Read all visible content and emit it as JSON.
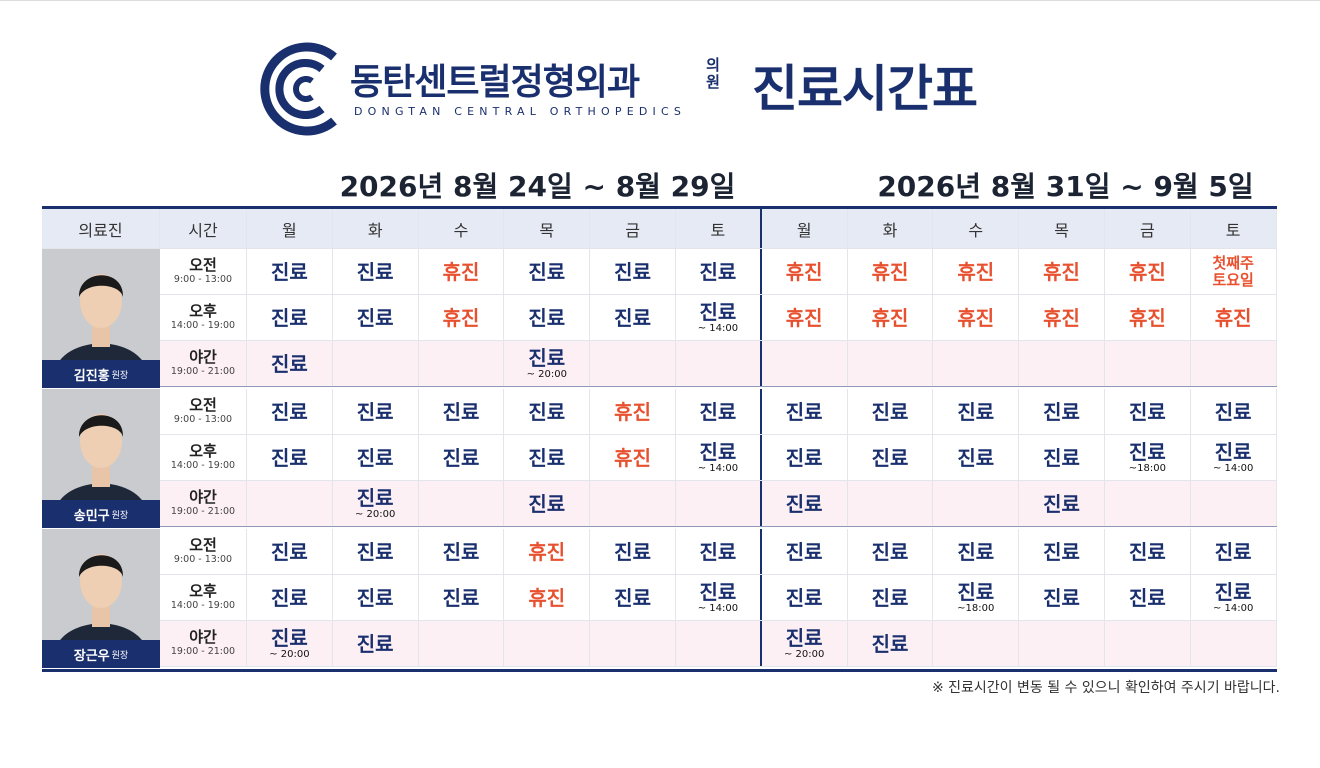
{
  "header": {
    "logo_name": "동탄센트럴정형외과",
    "logo_suffix": [
      "의",
      "원"
    ],
    "logo_english": "DONGTAN CENTRAL ORTHOPEDICS",
    "title": "진료시간표"
  },
  "weeks": [
    "2026년 8월 24일 ~ 8월 29일",
    "2026년 8월 31일 ~ 9월 5일"
  ],
  "columns": {
    "doctor": "의료진",
    "time": "시간",
    "days": [
      "월",
      "화",
      "수",
      "목",
      "금",
      "토",
      "월",
      "화",
      "수",
      "목",
      "금",
      "토"
    ]
  },
  "doctors": [
    {
      "name": "김진홍",
      "title": "원장",
      "slots": [
        {
          "label": "오전",
          "hours": "9:00 - 13:00",
          "cells": [
            {
              "text": "진료"
            },
            {
              "text": "진료"
            },
            {
              "text": "휴진",
              "color": "#e8512f"
            },
            {
              "text": "진료"
            },
            {
              "text": "진료"
            },
            {
              "text": "진료"
            },
            {
              "text": "휴진",
              "color": "#e8512f"
            },
            {
              "text": "휴진",
              "color": "#e8512f"
            },
            {
              "text": "휴진",
              "color": "#e8512f"
            },
            {
              "text": "휴진",
              "color": "#e8512f"
            },
            {
              "text": "휴진",
              "color": "#e8512f"
            },
            {
              "text": "첫째주 토요일",
              "color": "#e8512f",
              "font_size": 15
            }
          ]
        },
        {
          "label": "오후",
          "hours": "14:00 - 19:00",
          "cells": [
            {
              "text": "진료"
            },
            {
              "text": "진료"
            },
            {
              "text": "휴진",
              "color": "#e8512f"
            },
            {
              "text": "진료"
            },
            {
              "text": "진료"
            },
            {
              "text": "진료",
              "note": "~ 14:00"
            },
            {
              "text": "휴진",
              "color": "#e8512f"
            },
            {
              "text": "휴진",
              "color": "#e8512f"
            },
            {
              "text": "휴진",
              "color": "#e8512f"
            },
            {
              "text": "휴진",
              "color": "#e8512f"
            },
            {
              "text": "휴진",
              "color": "#e8512f"
            },
            {
              "text": "휴진",
              "color": "#e8512f"
            }
          ]
        },
        {
          "label": "야간",
          "hours": "19:00 - 21:00",
          "cells": [
            {
              "text": "진료"
            },
            null,
            null,
            {
              "text": "진료",
              "note": "~ 20:00"
            },
            null,
            null,
            null,
            null,
            null,
            null,
            null,
            null
          ]
        }
      ]
    },
    {
      "name": "송민구",
      "title": "원장",
      "slots": [
        {
          "label": "오전",
          "hours": "9:00 - 13:00",
          "cells": [
            {
              "text": "진료"
            },
            {
              "text": "진료"
            },
            {
              "text": "진료"
            },
            {
              "text": "진료"
            },
            {
              "text": "휴진",
              "color": "#e8512f"
            },
            {
              "text": "진료"
            },
            {
              "text": "진료"
            },
            {
              "text": "진료"
            },
            {
              "text": "진료"
            },
            {
              "text": "진료"
            },
            {
              "text": "진료"
            },
            {
              "text": "진료"
            }
          ]
        },
        {
          "label": "오후",
          "hours": "14:00 - 19:00",
          "cells": [
            {
              "text": "진료"
            },
            {
              "text": "진료"
            },
            {
              "text": "진료"
            },
            {
              "text": "진료"
            },
            {
              "text": "휴진",
              "color": "#e8512f"
            },
            {
              "text": "진료",
              "note": "~ 14:00"
            },
            {
              "text": "진료"
            },
            {
              "text": "진료"
            },
            {
              "text": "진료"
            },
            {
              "text": "진료"
            },
            {
              "text": "진료",
              "note": "~18:00"
            },
            {
              "text": "진료",
              "note": "~ 14:00"
            }
          ]
        },
        {
          "label": "야간",
          "hours": "19:00 - 21:00",
          "cells": [
            null,
            {
              "text": "진료",
              "note": "~ 20:00"
            },
            null,
            {
              "text": "진료"
            },
            null,
            null,
            {
              "text": "진료"
            },
            null,
            null,
            {
              "text": "진료"
            },
            null,
            null
          ]
        }
      ]
    },
    {
      "name": "장근우",
      "title": "원장",
      "slots": [
        {
          "label": "오전",
          "hours": "9:00 - 13:00",
          "cells": [
            {
              "text": "진료"
            },
            {
              "text": "진료"
            },
            {
              "text": "진료"
            },
            {
              "text": "휴진",
              "color": "#e8512f"
            },
            {
              "text": "진료"
            },
            {
              "text": "진료"
            },
            {
              "text": "진료"
            },
            {
              "text": "진료"
            },
            {
              "text": "진료"
            },
            {
              "text": "진료"
            },
            {
              "text": "진료"
            },
            {
              "text": "진료"
            }
          ]
        },
        {
          "label": "오후",
          "hours": "14:00 - 19:00",
          "cells": [
            {
              "text": "진료"
            },
            {
              "text": "진료"
            },
            {
              "text": "진료"
            },
            {
              "text": "휴진",
              "color": "#e8512f"
            },
            {
              "text": "진료"
            },
            {
              "text": "진료",
              "note": "~ 14:00"
            },
            {
              "text": "진료"
            },
            {
              "text": "진료"
            },
            {
              "text": "진료",
              "note": "~18:00"
            },
            {
              "text": "진료"
            },
            {
              "text": "진료"
            },
            {
              "text": "진료",
              "note": "~ 14:00"
            }
          ]
        },
        {
          "label": "야간",
          "hours": "19:00 - 21:00",
          "cells": [
            {
              "text": "진료",
              "note": "~ 20:00"
            },
            {
              "text": "진료"
            },
            null,
            null,
            null,
            null,
            {
              "text": "진료",
              "note": "~ 20:00"
            },
            {
              "text": "진료"
            },
            null,
            null,
            null,
            null
          ]
        }
      ]
    }
  ],
  "footnote": "※ 진료시간이 변동 될 수 있으니 확인하여 주시기 바랍니다."
}
